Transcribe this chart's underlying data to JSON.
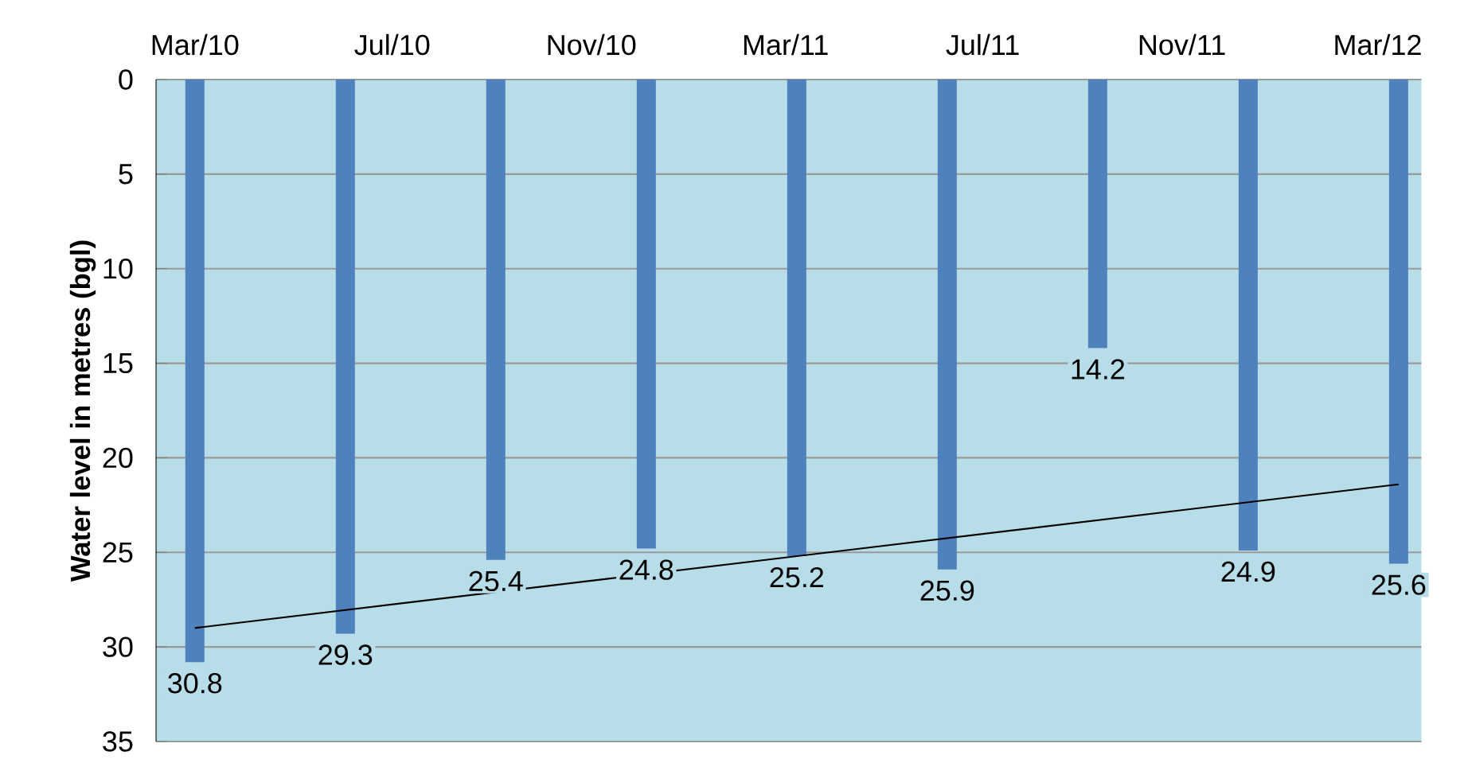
{
  "chart_data": {
    "type": "bar",
    "ylabel": "Water level in metres (bgl)",
    "x": [
      "2010-03-01",
      "2010-06-02",
      "2010-09-03",
      "2010-12-05",
      "2011-03-08",
      "2011-06-09",
      "2011-09-10",
      "2011-12-12",
      "2012-03-14"
    ],
    "series": [
      {
        "color": "#4f81bd",
        "values": [
          30.8,
          29.3,
          25.4,
          24.8,
          25.2,
          25.9,
          14.2,
          24.9,
          25.6
        ],
        "value_labels": [
          "30.8",
          "29.3",
          "25.4",
          "24.8",
          "25.2",
          "25.9",
          "14.2",
          "24.9",
          "25.6"
        ]
      },
      {
        "type": "line",
        "color": "#000000",
        "x": [
          "2010-03-01",
          "2012-03-14"
        ],
        "values": [
          29.0,
          21.4
        ]
      }
    ],
    "xlim": [
      "2010-02-05",
      "2012-03-28"
    ],
    "xticks": [
      {
        "value": "2010-03-01",
        "label": "Mar/10"
      },
      {
        "value": "2010-07-01",
        "label": "Jul/10"
      },
      {
        "value": "2010-11-01",
        "label": "Nov/10"
      },
      {
        "value": "2011-03-01",
        "label": "Mar/11"
      },
      {
        "value": "2011-07-01",
        "label": "Jul/11"
      },
      {
        "value": "2011-11-01",
        "label": "Nov/11"
      },
      {
        "value": "2012-03-01",
        "label": "Mar/12"
      }
    ],
    "ylim": [
      35,
      0
    ],
    "yticks": [
      0,
      5,
      10,
      15,
      20,
      25,
      30,
      35
    ],
    "grid": "y"
  }
}
